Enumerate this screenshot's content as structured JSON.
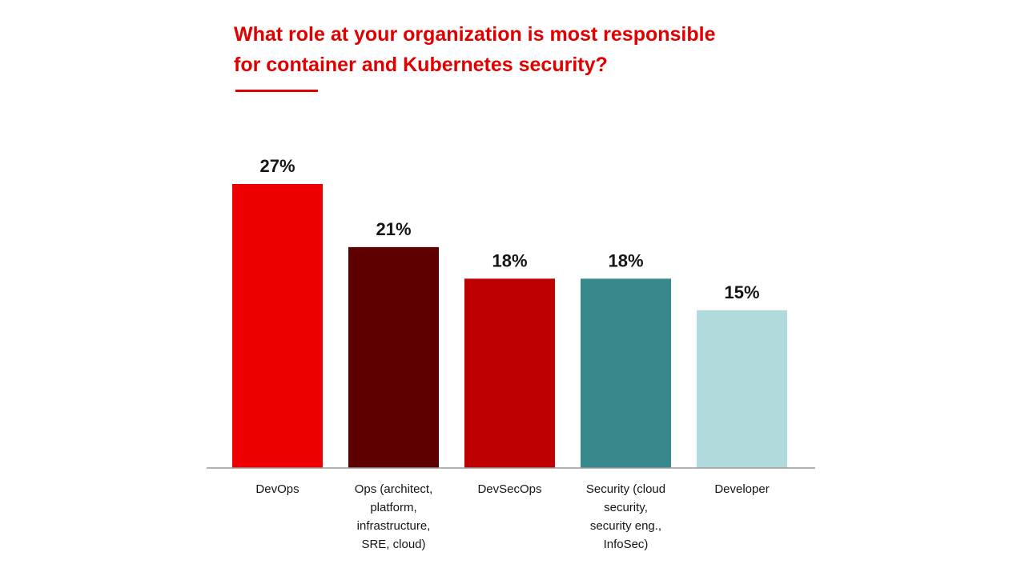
{
  "chart_data": {
    "type": "bar",
    "title": "What role at your organization is most responsible\nfor container and Kubernetes security?",
    "categories": [
      [
        "DevOps"
      ],
      [
        "Ops (architect,",
        "platform,",
        "infrastructure,",
        "SRE, cloud)"
      ],
      [
        "DevSecOps"
      ],
      [
        "Security (cloud",
        "security,",
        "security eng.,",
        "InfoSec)"
      ],
      [
        "Developer"
      ]
    ],
    "values": [
      27,
      21,
      18,
      18,
      15
    ],
    "value_labels": [
      "27%",
      "21%",
      "18%",
      "18%",
      "15%"
    ],
    "colors": [
      "#ee0000",
      "#5f0000",
      "#be0000",
      "#37898c",
      "#b0dadb"
    ],
    "ylim": [
      0,
      30
    ],
    "grid": false,
    "legend": "none"
  }
}
